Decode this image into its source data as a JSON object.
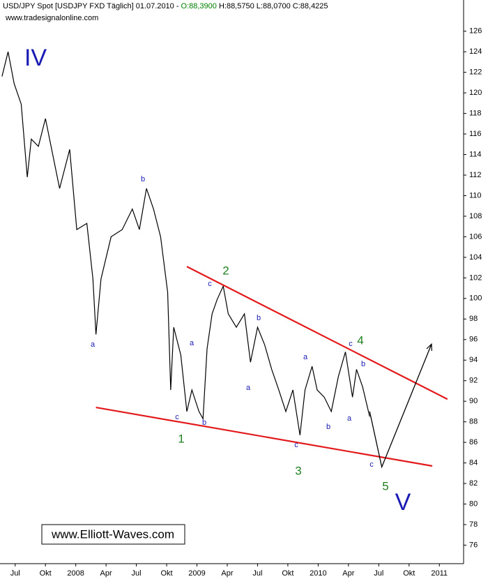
{
  "chart_data": {
    "type": "line",
    "title": "USD/JPY Spot [USDJPY FXD  Täglich] 01.07.2010 -",
    "ohlc": [
      {
        "text": "O:88,3900",
        "color": "#008000"
      },
      {
        "text": "H:88,5750",
        "color": "#000000"
      },
      {
        "text": "L:88,0700",
        "color": "#000000"
      },
      {
        "text": "C:88,4225",
        "color": "#000000"
      }
    ],
    "subtitle": "www.tradesignalonline.com",
    "watermark": "www.Elliott-Waves.com",
    "xlim": [
      -1.5,
      44.4
    ],
    "ylim": [
      74.2,
      128.9
    ],
    "xticks": [
      {
        "value": 0,
        "label": "Jul"
      },
      {
        "value": 3,
        "label": "Okt"
      },
      {
        "value": 6,
        "label": "2008"
      },
      {
        "value": 9,
        "label": "Apr"
      },
      {
        "value": 12,
        "label": "Jul"
      },
      {
        "value": 15,
        "label": "Okt"
      },
      {
        "value": 18,
        "label": "2009"
      },
      {
        "value": 21,
        "label": "Apr"
      },
      {
        "value": 24,
        "label": "Jul"
      },
      {
        "value": 27,
        "label": "Okt"
      },
      {
        "value": 30,
        "label": "2010"
      },
      {
        "value": 33,
        "label": "Apr"
      },
      {
        "value": 36,
        "label": "Jul"
      },
      {
        "value": 39,
        "label": "Okt"
      },
      {
        "value": 42,
        "label": "2011"
      }
    ],
    "yticks": [
      76,
      78,
      80,
      82,
      84,
      86,
      88,
      90,
      92,
      94,
      96,
      98,
      100,
      102,
      104,
      106,
      108,
      110,
      112,
      114,
      116,
      118,
      120,
      122,
      124,
      126
    ],
    "x": [
      -1.3,
      -0.7,
      -0.1,
      0.6,
      1.2,
      1.6,
      2.3,
      3.0,
      3.7,
      4.4,
      5.4,
      6.1,
      7.1,
      7.7,
      8.0,
      8.5,
      9.5,
      10.6,
      11.6,
      12.3,
      13.0,
      13.7,
      14.4,
      15.1,
      15.4,
      15.7,
      16.4,
      17.0,
      17.5,
      18.2,
      18.6,
      19.0,
      19.5,
      20.0,
      20.6,
      21.1,
      21.9,
      22.7,
      23.3,
      24.0,
      24.7,
      25.4,
      26.1,
      26.8,
      27.5,
      28.2,
      28.7,
      29.4,
      29.9,
      30.6,
      31.3,
      32.0,
      32.7,
      33.4,
      33.8,
      34.4,
      35.1
    ],
    "series": [
      {
        "name": "USD/JPY",
        "color": "#000000",
        "values": [
          121.6,
          124.0,
          120.9,
          118.9,
          111.8,
          115.5,
          114.8,
          117.5,
          114.1,
          110.7,
          114.5,
          106.7,
          107.3,
          101.9,
          96.5,
          101.9,
          106.0,
          106.7,
          108.7,
          106.7,
          110.7,
          108.7,
          106.0,
          100.6,
          91.1,
          97.2,
          94.5,
          89.0,
          91.1,
          89.0,
          88.3,
          95.1,
          98.5,
          99.9,
          101.2,
          98.5,
          97.2,
          98.5,
          93.8,
          97.2,
          95.5,
          93.1,
          91.1,
          89.0,
          91.1,
          86.7,
          91.1,
          93.4,
          91.1,
          90.4,
          89.0,
          92.4,
          94.8,
          90.4,
          93.1,
          91.4,
          88.5
        ]
      }
    ],
    "lines": [
      {
        "color": "#e31a1c",
        "x": [
          17.0,
          42.8
        ],
        "y": [
          103.1,
          90.2
        ]
      },
      {
        "color": "#e31a1c",
        "x": [
          8.0,
          41.3
        ],
        "y": [
          89.4,
          83.7
        ]
      },
      {
        "color": "#000000",
        "x": [
          35.1,
          36.3,
          41.2
        ],
        "y": [
          89.0,
          83.6,
          95.5
        ]
      }
    ],
    "labels": [
      {
        "text": "IV",
        "color": "#1a1ab4"
      },
      {
        "text": "b",
        "color": "#1a1ab4"
      },
      {
        "text": "a",
        "color": "#1a1ab4"
      },
      {
        "text": "c",
        "color": "#1a1ab4"
      },
      {
        "text": "b",
        "color": "#1a1ab4"
      },
      {
        "text": "a",
        "color": "#1a1ab4"
      },
      {
        "text": "1",
        "color": "#208020"
      },
      {
        "text": "c",
        "color": "#1a1ab4"
      },
      {
        "text": "2",
        "color": "#208020"
      },
      {
        "text": "b",
        "color": "#1a1ab4"
      },
      {
        "text": "a",
        "color": "#1a1ab4"
      },
      {
        "text": "c",
        "color": "#1a1ab4"
      },
      {
        "text": "3",
        "color": "#208020"
      },
      {
        "text": "a",
        "color": "#1a1ab4"
      },
      {
        "text": "b",
        "color": "#1a1ab4"
      },
      {
        "text": "a",
        "color": "#1a1ab4"
      },
      {
        "text": "c",
        "color": "#1a1ab4"
      },
      {
        "text": "4",
        "color": "#208020"
      },
      {
        "text": "b",
        "color": "#1a1ab4"
      },
      {
        "text": "c",
        "color": "#1a1ab4"
      },
      {
        "text": "5",
        "color": "#208020"
      },
      {
        "text": "V",
        "color": "#1a1ab4"
      }
    ]
  }
}
